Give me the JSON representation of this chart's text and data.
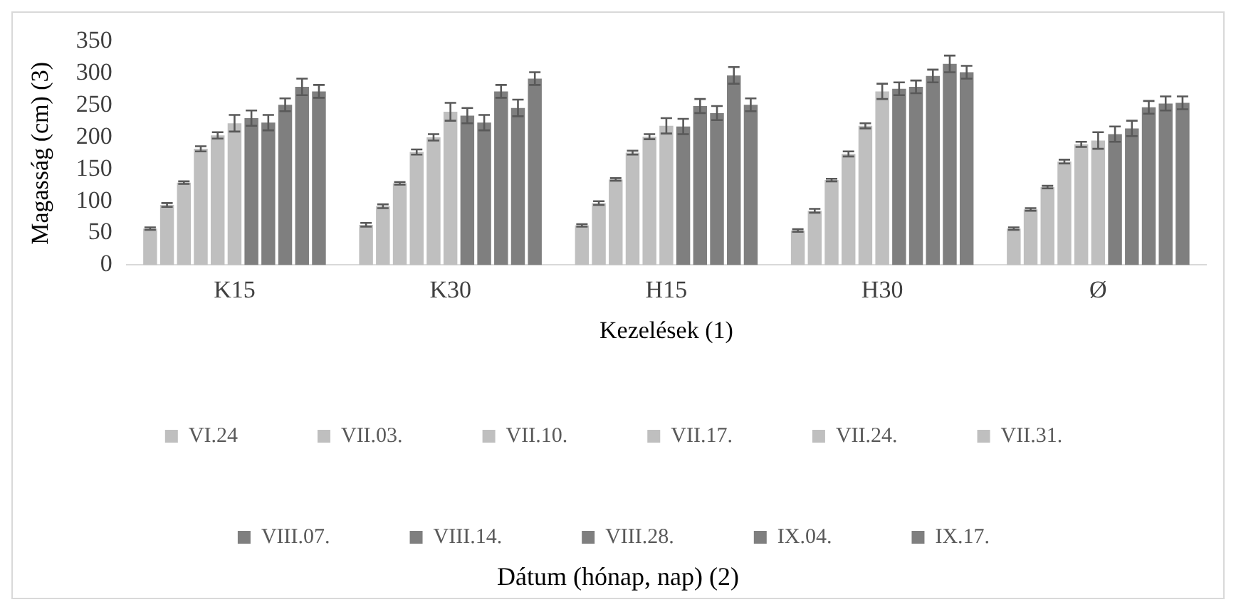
{
  "chart_data": {
    "type": "bar",
    "ylabel": "Magasság (cm) (3)",
    "xlabel": "Kezelések (1)",
    "legend_title": "Dátum (hónap, nap) (2)",
    "categories": [
      "K15",
      "K30",
      "H15",
      "H30",
      "Ø"
    ],
    "ylim": [
      0,
      350
    ],
    "yticks": [
      0,
      50,
      100,
      150,
      200,
      250,
      300,
      350
    ],
    "grid": false,
    "legend": "bottom",
    "series": [
      {
        "name": "VI.24",
        "color": "#bfbfbf",
        "values": [
          57,
          63,
          62,
          54,
          57
        ],
        "errors": [
          2,
          3,
          2,
          2,
          2
        ]
      },
      {
        "name": "VII.03.",
        "color": "#bfbfbf",
        "values": [
          94,
          92,
          97,
          85,
          87
        ],
        "errors": [
          3,
          3,
          3,
          3,
          2
        ]
      },
      {
        "name": "VII.10.",
        "color": "#bfbfbf",
        "values": [
          129,
          128,
          134,
          133,
          122
        ],
        "errors": [
          2,
          2,
          2,
          2,
          2
        ]
      },
      {
        "name": "VII.17.",
        "color": "#bfbfbf",
        "values": [
          182,
          177,
          176,
          174,
          162
        ],
        "errors": [
          4,
          4,
          3,
          4,
          3
        ]
      },
      {
        "name": "VII.24.",
        "color": "#bfbfbf",
        "values": [
          203,
          200,
          201,
          218,
          189
        ],
        "errors": [
          5,
          5,
          4,
          4,
          4
        ]
      },
      {
        "name": "VII.31.",
        "color": "#bfbfbf",
        "values": [
          222,
          240,
          218,
          272,
          195
        ],
        "errors": [
          13,
          14,
          12,
          12,
          13
        ]
      },
      {
        "name": "VIII.07.",
        "color": "#7f7f7f",
        "values": [
          230,
          234,
          217,
          276,
          205
        ],
        "errors": [
          12,
          12,
          12,
          10,
          12
        ]
      },
      {
        "name": "VIII.14.",
        "color": "#7f7f7f",
        "values": [
          223,
          223,
          249,
          279,
          214
        ],
        "errors": [
          12,
          12,
          11,
          10,
          12
        ]
      },
      {
        "name": "VIII.28.",
        "color": "#7f7f7f",
        "values": [
          251,
          272,
          238,
          296,
          247
        ],
        "errors": [
          10,
          10,
          11,
          10,
          10
        ]
      },
      {
        "name": "IX.04.",
        "color": "#7f7f7f",
        "values": [
          279,
          246,
          297,
          315,
          253
        ],
        "errors": [
          13,
          13,
          13,
          13,
          11
        ]
      },
      {
        "name": "IX.17.",
        "color": "#7f7f7f",
        "values": [
          272,
          292,
          251,
          302,
          254
        ],
        "errors": [
          10,
          10,
          10,
          10,
          10
        ]
      }
    ]
  }
}
